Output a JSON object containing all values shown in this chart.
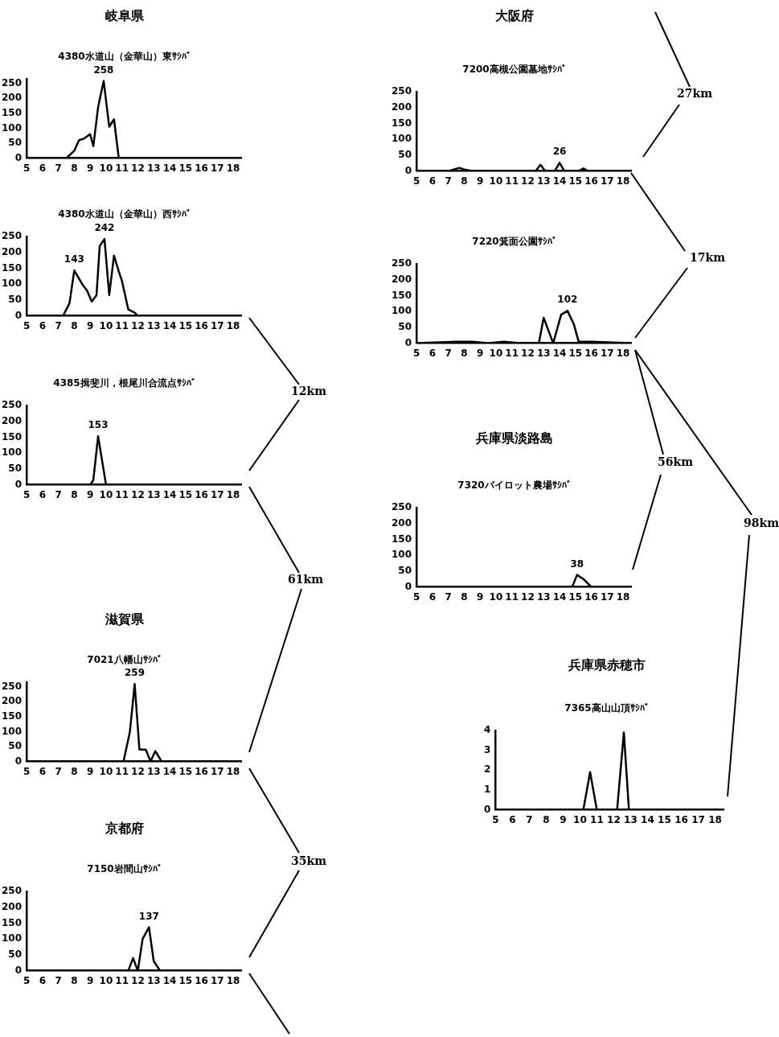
{
  "chart_data": [
    {
      "type": "line",
      "title": "岐阜県",
      "subtitle": "4380水道山（金華山）東ｻｼﾊﾞ",
      "xlim": [
        5,
        18.5
      ],
      "xticks": [
        5,
        6,
        7,
        8,
        9,
        10,
        11,
        12,
        13,
        14,
        15,
        16,
        17,
        18
      ],
      "ylim": [
        0,
        265
      ],
      "yticks": [
        0,
        50,
        100,
        150,
        200,
        250
      ],
      "legend": false,
      "series": [
        {
          "color": "#000000",
          "x": [
            5,
            7.5,
            8,
            8.3,
            8.6,
            9,
            9.2,
            9.5,
            9.85,
            10.2,
            10.5,
            10.8,
            18.5
          ],
          "values": [
            0,
            0,
            25,
            60,
            65,
            80,
            40,
            170,
            258,
            105,
            130,
            0,
            0
          ],
          "value_labels": [
            null,
            null,
            null,
            null,
            null,
            null,
            null,
            null,
            "258",
            null,
            null,
            null,
            null
          ]
        }
      ]
    },
    {
      "type": "line",
      "subtitle": "4380水道山（金華山）西ｻｼﾊﾞ",
      "xlim": [
        5,
        18.5
      ],
      "xticks": [
        5,
        6,
        7,
        8,
        9,
        10,
        11,
        12,
        13,
        14,
        15,
        16,
        17,
        18
      ],
      "ylim": [
        0,
        250
      ],
      "yticks": [
        0,
        50,
        100,
        150,
        200,
        250
      ],
      "legend": false,
      "series": [
        {
          "color": "#000000",
          "x": [
            5,
            7.3,
            7.7,
            8,
            8.5,
            8.8,
            9.1,
            9.4,
            9.6,
            9.9,
            10.2,
            10.5,
            10.8,
            11,
            11.4,
            11.8,
            12,
            18.5
          ],
          "values": [
            0,
            0,
            40,
            143,
            100,
            80,
            45,
            65,
            220,
            242,
            65,
            190,
            140,
            110,
            20,
            10,
            0,
            0
          ],
          "value_labels": [
            null,
            null,
            null,
            "143",
            null,
            null,
            null,
            null,
            null,
            "242",
            null,
            null,
            null,
            null,
            null,
            null,
            null,
            null
          ]
        }
      ]
    },
    {
      "type": "line",
      "subtitle": "4385揖斐川，根尾川合流点ｻｼﾊﾞ",
      "xlim": [
        5,
        18.5
      ],
      "xticks": [
        5,
        6,
        7,
        8,
        9,
        10,
        11,
        12,
        13,
        14,
        15,
        16,
        17,
        18
      ],
      "ylim": [
        0,
        250
      ],
      "yticks": [
        0,
        50,
        100,
        150,
        200,
        250
      ],
      "legend": false,
      "annotations": [
        "12km"
      ],
      "series": [
        {
          "color": "#000000",
          "x": [
            5,
            9,
            9.2,
            9.5,
            10,
            18.5
          ],
          "values": [
            0,
            0,
            15,
            153,
            0,
            0
          ],
          "value_labels": [
            null,
            null,
            null,
            "153",
            null,
            null
          ]
        }
      ]
    },
    {
      "type": "line",
      "title": "滋賀県",
      "subtitle": "7021八幡山ｻｼﾊﾞ",
      "xlim": [
        5,
        18.5
      ],
      "xticks": [
        5,
        6,
        7,
        8,
        9,
        10,
        11,
        12,
        13,
        14,
        15,
        16,
        17,
        18
      ],
      "ylim": [
        0,
        265
      ],
      "yticks": [
        0,
        50,
        100,
        150,
        200,
        250
      ],
      "legend": false,
      "annotations": [
        "61km"
      ],
      "series": [
        {
          "color": "#000000",
          "x": [
            5,
            11.1,
            11.5,
            11.8,
            12.1,
            12.5,
            12.8,
            13.1,
            13.5,
            18.5
          ],
          "values": [
            0,
            0,
            100,
            259,
            40,
            40,
            0,
            35,
            0,
            0
          ],
          "value_labels": [
            null,
            null,
            null,
            "259",
            null,
            null,
            null,
            null,
            null,
            null
          ]
        }
      ]
    },
    {
      "type": "line",
      "title": "京都府",
      "subtitle": "7150岩間山ｻｼﾊﾞ",
      "xlim": [
        5,
        18.5
      ],
      "xticks": [
        5,
        6,
        7,
        8,
        9,
        10,
        11,
        12,
        13,
        14,
        15,
        16,
        17,
        18
      ],
      "ylim": [
        0,
        250
      ],
      "yticks": [
        0,
        50,
        100,
        150,
        200,
        250
      ],
      "legend": false,
      "annotations": [
        "35km"
      ],
      "series": [
        {
          "color": "#000000",
          "x": [
            5,
            11.4,
            11.7,
            12,
            12.3,
            12.7,
            13,
            13.4,
            18.5
          ],
          "values": [
            0,
            0,
            40,
            0,
            100,
            137,
            30,
            0,
            0
          ],
          "value_labels": [
            null,
            null,
            null,
            null,
            null,
            "137",
            null,
            null,
            null
          ]
        }
      ]
    },
    {
      "type": "line",
      "title": "大阪府",
      "subtitle": "7200高槻公園墓地ｻｼﾊﾞ",
      "xlim": [
        5,
        18.5
      ],
      "xticks": [
        5,
        6,
        7,
        8,
        9,
        10,
        11,
        12,
        13,
        14,
        15,
        16,
        17,
        18
      ],
      "ylim": [
        0,
        250
      ],
      "yticks": [
        0,
        50,
        100,
        150,
        200,
        250
      ],
      "legend": false,
      "annotations": [
        "27km"
      ],
      "series": [
        {
          "color": "#000000",
          "x": [
            5,
            7,
            7.7,
            8,
            8.5,
            12.5,
            12.8,
            13.1,
            13.7,
            14,
            14.3,
            15.2,
            15.5,
            15.8,
            18.5
          ],
          "values": [
            0,
            0,
            10,
            5,
            0,
            0,
            20,
            0,
            0,
            26,
            0,
            0,
            8,
            0,
            0
          ],
          "value_labels": [
            null,
            null,
            null,
            null,
            null,
            null,
            null,
            null,
            null,
            "26",
            null,
            null,
            null,
            null,
            null
          ]
        }
      ]
    },
    {
      "type": "line",
      "subtitle": "7220箕面公園ｻｼﾊﾞ",
      "xlim": [
        5,
        18.5
      ],
      "xticks": [
        5,
        6,
        7,
        8,
        9,
        10,
        11,
        12,
        13,
        14,
        15,
        16,
        17,
        18
      ],
      "ylim": [
        0,
        250
      ],
      "yticks": [
        0,
        50,
        100,
        150,
        200,
        250
      ],
      "legend": false,
      "annotations": [
        "17km"
      ],
      "series": [
        {
          "color": "#000000",
          "x": [
            5,
            7.5,
            8.5,
            9.5,
            10.5,
            11.5,
            12.7,
            13,
            13.6,
            14.1,
            14.5,
            14.9,
            15.2,
            16,
            18.5
          ],
          "values": [
            0,
            5,
            5,
            0,
            5,
            0,
            0,
            80,
            0,
            90,
            102,
            60,
            5,
            5,
            0
          ],
          "value_labels": [
            null,
            null,
            null,
            null,
            null,
            null,
            null,
            null,
            null,
            null,
            "102",
            null,
            null,
            null,
            null
          ]
        }
      ]
    },
    {
      "type": "line",
      "title": "兵庫県淡路島",
      "subtitle": "7320パイロット農場ｻｼﾊﾞ",
      "xlim": [
        5,
        18.5
      ],
      "xticks": [
        5,
        6,
        7,
        8,
        9,
        10,
        11,
        12,
        13,
        14,
        15,
        16,
        17,
        18
      ],
      "ylim": [
        0,
        250
      ],
      "yticks": [
        0,
        50,
        100,
        150,
        200,
        250
      ],
      "legend": false,
      "annotations": [
        "56km"
      ],
      "series": [
        {
          "color": "#000000",
          "x": [
            5,
            14.8,
            15.1,
            15.5,
            16,
            18.5
          ],
          "values": [
            0,
            0,
            38,
            25,
            0,
            0
          ],
          "value_labels": [
            null,
            null,
            "38",
            null,
            null,
            null
          ]
        }
      ]
    },
    {
      "type": "line",
      "title": "兵庫県赤穂市",
      "subtitle": "7365高山山頂ｻｼﾊﾞ",
      "xlim": [
        5,
        18.5
      ],
      "xticks": [
        5,
        6,
        7,
        8,
        9,
        10,
        11,
        12,
        13,
        14,
        15,
        16,
        17,
        18
      ],
      "ylim": [
        0,
        4
      ],
      "yticks": [
        0,
        1,
        2,
        3,
        4
      ],
      "legend": false,
      "annotations": [
        "98km"
      ],
      "series": [
        {
          "color": "#000000",
          "x": [
            5,
            10.2,
            10.6,
            11,
            12.2,
            12.6,
            12.9,
            18.5
          ],
          "values": [
            0,
            0,
            1.9,
            0,
            0,
            3.9,
            0,
            0
          ]
        }
      ]
    }
  ]
}
